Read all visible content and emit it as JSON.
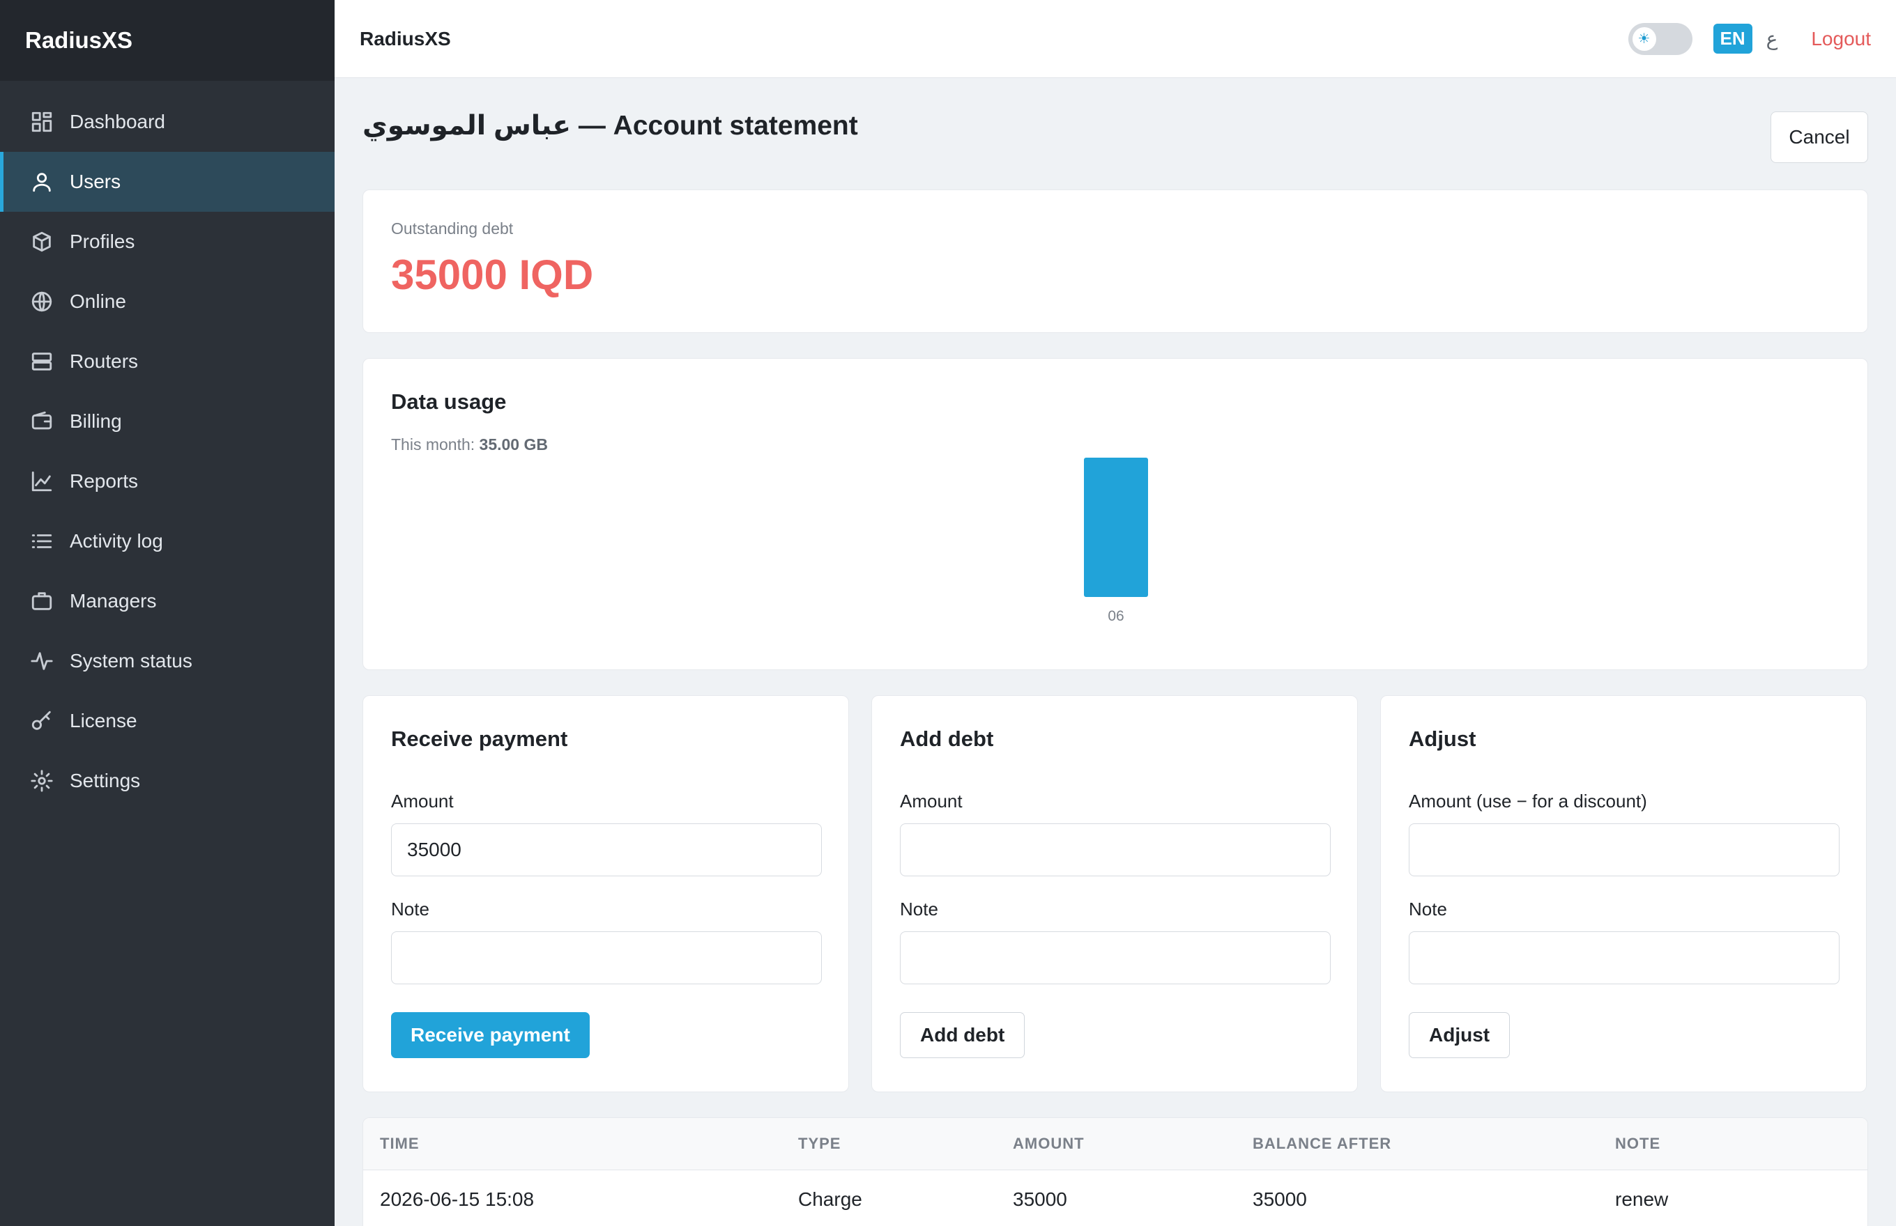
{
  "app": {
    "brand": "RadiusXS",
    "topbar_title": "RadiusXS"
  },
  "topbar": {
    "theme_toggle_icon": "sun-icon",
    "lang_en": "EN",
    "lang_ar": "ع",
    "logout": "Logout"
  },
  "sidebar": {
    "items": [
      {
        "label": "Dashboard",
        "icon": "dashboard-icon",
        "active": false
      },
      {
        "label": "Users",
        "icon": "user-icon",
        "active": true
      },
      {
        "label": "Profiles",
        "icon": "box-icon",
        "active": false
      },
      {
        "label": "Online",
        "icon": "globe-icon",
        "active": false
      },
      {
        "label": "Routers",
        "icon": "server-icon",
        "active": false
      },
      {
        "label": "Billing",
        "icon": "wallet-icon",
        "active": false
      },
      {
        "label": "Reports",
        "icon": "chart-line-icon",
        "active": false
      },
      {
        "label": "Activity log",
        "icon": "list-icon",
        "active": false
      },
      {
        "label": "Managers",
        "icon": "briefcase-icon",
        "active": false
      },
      {
        "label": "System status",
        "icon": "pulse-icon",
        "active": false
      },
      {
        "label": "License",
        "icon": "key-icon",
        "active": false
      },
      {
        "label": "Settings",
        "icon": "gear-icon",
        "active": false
      }
    ]
  },
  "page": {
    "title": "عباس الموسوي — Account statement",
    "cancel": "Cancel"
  },
  "debt": {
    "label": "Outstanding debt",
    "value": "35000 IQD"
  },
  "usage": {
    "title": "Data usage",
    "this_month_label": "This month: ",
    "this_month_value": "35.00 GB"
  },
  "chart_data": {
    "type": "bar",
    "categories": [
      "06"
    ],
    "values": [
      35.0
    ],
    "title": "",
    "xlabel": "",
    "ylabel": "",
    "color": "#21a3d9"
  },
  "forms": {
    "payment": {
      "title": "Receive payment",
      "amount_label": "Amount",
      "amount_value": "35000",
      "note_label": "Note",
      "note_value": "",
      "button": "Receive payment"
    },
    "debt": {
      "title": "Add debt",
      "amount_label": "Amount",
      "amount_value": "",
      "note_label": "Note",
      "note_value": "",
      "button": "Add debt"
    },
    "adjust": {
      "title": "Adjust",
      "amount_label": "Amount (use − for a discount)",
      "amount_value": "",
      "note_label": "Note",
      "note_value": "",
      "button": "Adjust"
    }
  },
  "table": {
    "headers": [
      "TIME",
      "TYPE",
      "AMOUNT",
      "BALANCE AFTER",
      "NOTE"
    ],
    "rows": [
      [
        "2026-06-15 15:08",
        "Charge",
        "35000",
        "35000",
        "renew"
      ]
    ]
  },
  "colors": {
    "accent": "#21a3d9",
    "danger": "#ef6461",
    "sidebar_bg": "#2c3138"
  }
}
